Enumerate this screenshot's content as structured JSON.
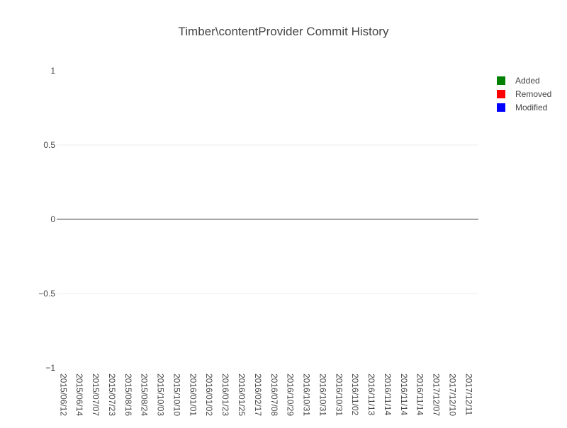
{
  "chart_data": {
    "type": "bar",
    "title": "Timber\\contentProvider Commit History",
    "xlabel": "",
    "ylabel": "",
    "categories": [
      "2015/06/12",
      "2015/06/14",
      "2015/07/07",
      "2015/07/23",
      "2015/08/16",
      "2015/08/24",
      "2015/10/03",
      "2015/10/10",
      "2016/01/01",
      "2016/01/02",
      "2016/01/23",
      "2016/01/25",
      "2016/02/17",
      "2016/07/08",
      "2016/10/29",
      "2016/10/31",
      "2016/10/31",
      "2016/10/31",
      "2016/11/02",
      "2016/11/13",
      "2016/11/14",
      "2016/11/14",
      "2016/11/14",
      "2017/12/07",
      "2017/12/10",
      "2017/12/11"
    ],
    "series": [
      {
        "name": "Added",
        "color": "#008000",
        "values": [
          0,
          0,
          0,
          0,
          0,
          0,
          0,
          0,
          0,
          0,
          0,
          0,
          0,
          0,
          0,
          0,
          0,
          0,
          0,
          0,
          0,
          0,
          0,
          0,
          0,
          0
        ]
      },
      {
        "name": "Removed",
        "color": "#ff0000",
        "values": [
          0,
          0,
          0,
          0,
          0,
          0,
          0,
          0,
          0,
          0,
          0,
          0,
          0,
          0,
          0,
          0,
          0,
          0,
          0,
          0,
          0,
          0,
          0,
          0,
          0,
          0
        ]
      },
      {
        "name": "Modified",
        "color": "#0000ff",
        "values": [
          0,
          0,
          0,
          0,
          0,
          0,
          0,
          0,
          0,
          0,
          0,
          0,
          0,
          0,
          0,
          0,
          0,
          0,
          0,
          0,
          0,
          0,
          0,
          0,
          0,
          0
        ]
      }
    ],
    "ylim": [
      -1,
      1
    ],
    "yticks": [
      -1,
      -0.5,
      0,
      0.5,
      1
    ],
    "ytick_labels": [
      "−1",
      "−0.5",
      "0",
      "0.5",
      "1"
    ],
    "grid": true,
    "legend_position": "top-right"
  }
}
